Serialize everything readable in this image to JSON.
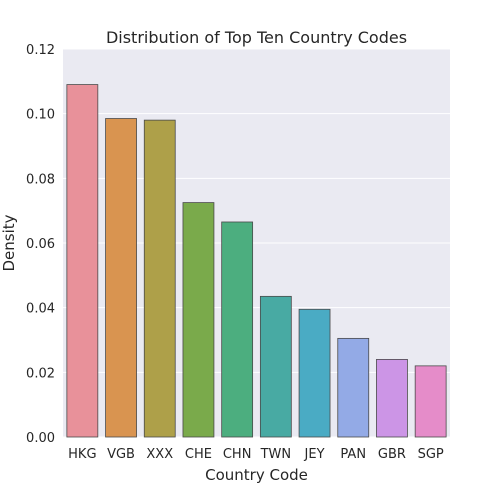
{
  "chart_data": {
    "type": "bar",
    "title": "Distribution of Top Ten Country Codes",
    "xlabel": "Country Code",
    "ylabel": "Density",
    "categories": [
      "HKG",
      "VGB",
      "XXX",
      "CHE",
      "CHN",
      "TWN",
      "JEY",
      "PAN",
      "GBR",
      "SGP"
    ],
    "values": [
      0.109,
      0.0985,
      0.098,
      0.0725,
      0.0665,
      0.0435,
      0.0395,
      0.0305,
      0.024,
      0.022
    ],
    "ylim": [
      0,
      0.12
    ],
    "yticks": [
      "0.00",
      "0.02",
      "0.04",
      "0.06",
      "0.08",
      "0.10",
      "0.12"
    ],
    "grid": true,
    "colors": [
      "#e8919a",
      "#d99450",
      "#aea049",
      "#7aaa4b",
      "#4cae7f",
      "#48aaa3",
      "#4aabc4",
      "#93aae6",
      "#cc95e6",
      "#e58cc9"
    ],
    "background": "#eaeaf2"
  }
}
